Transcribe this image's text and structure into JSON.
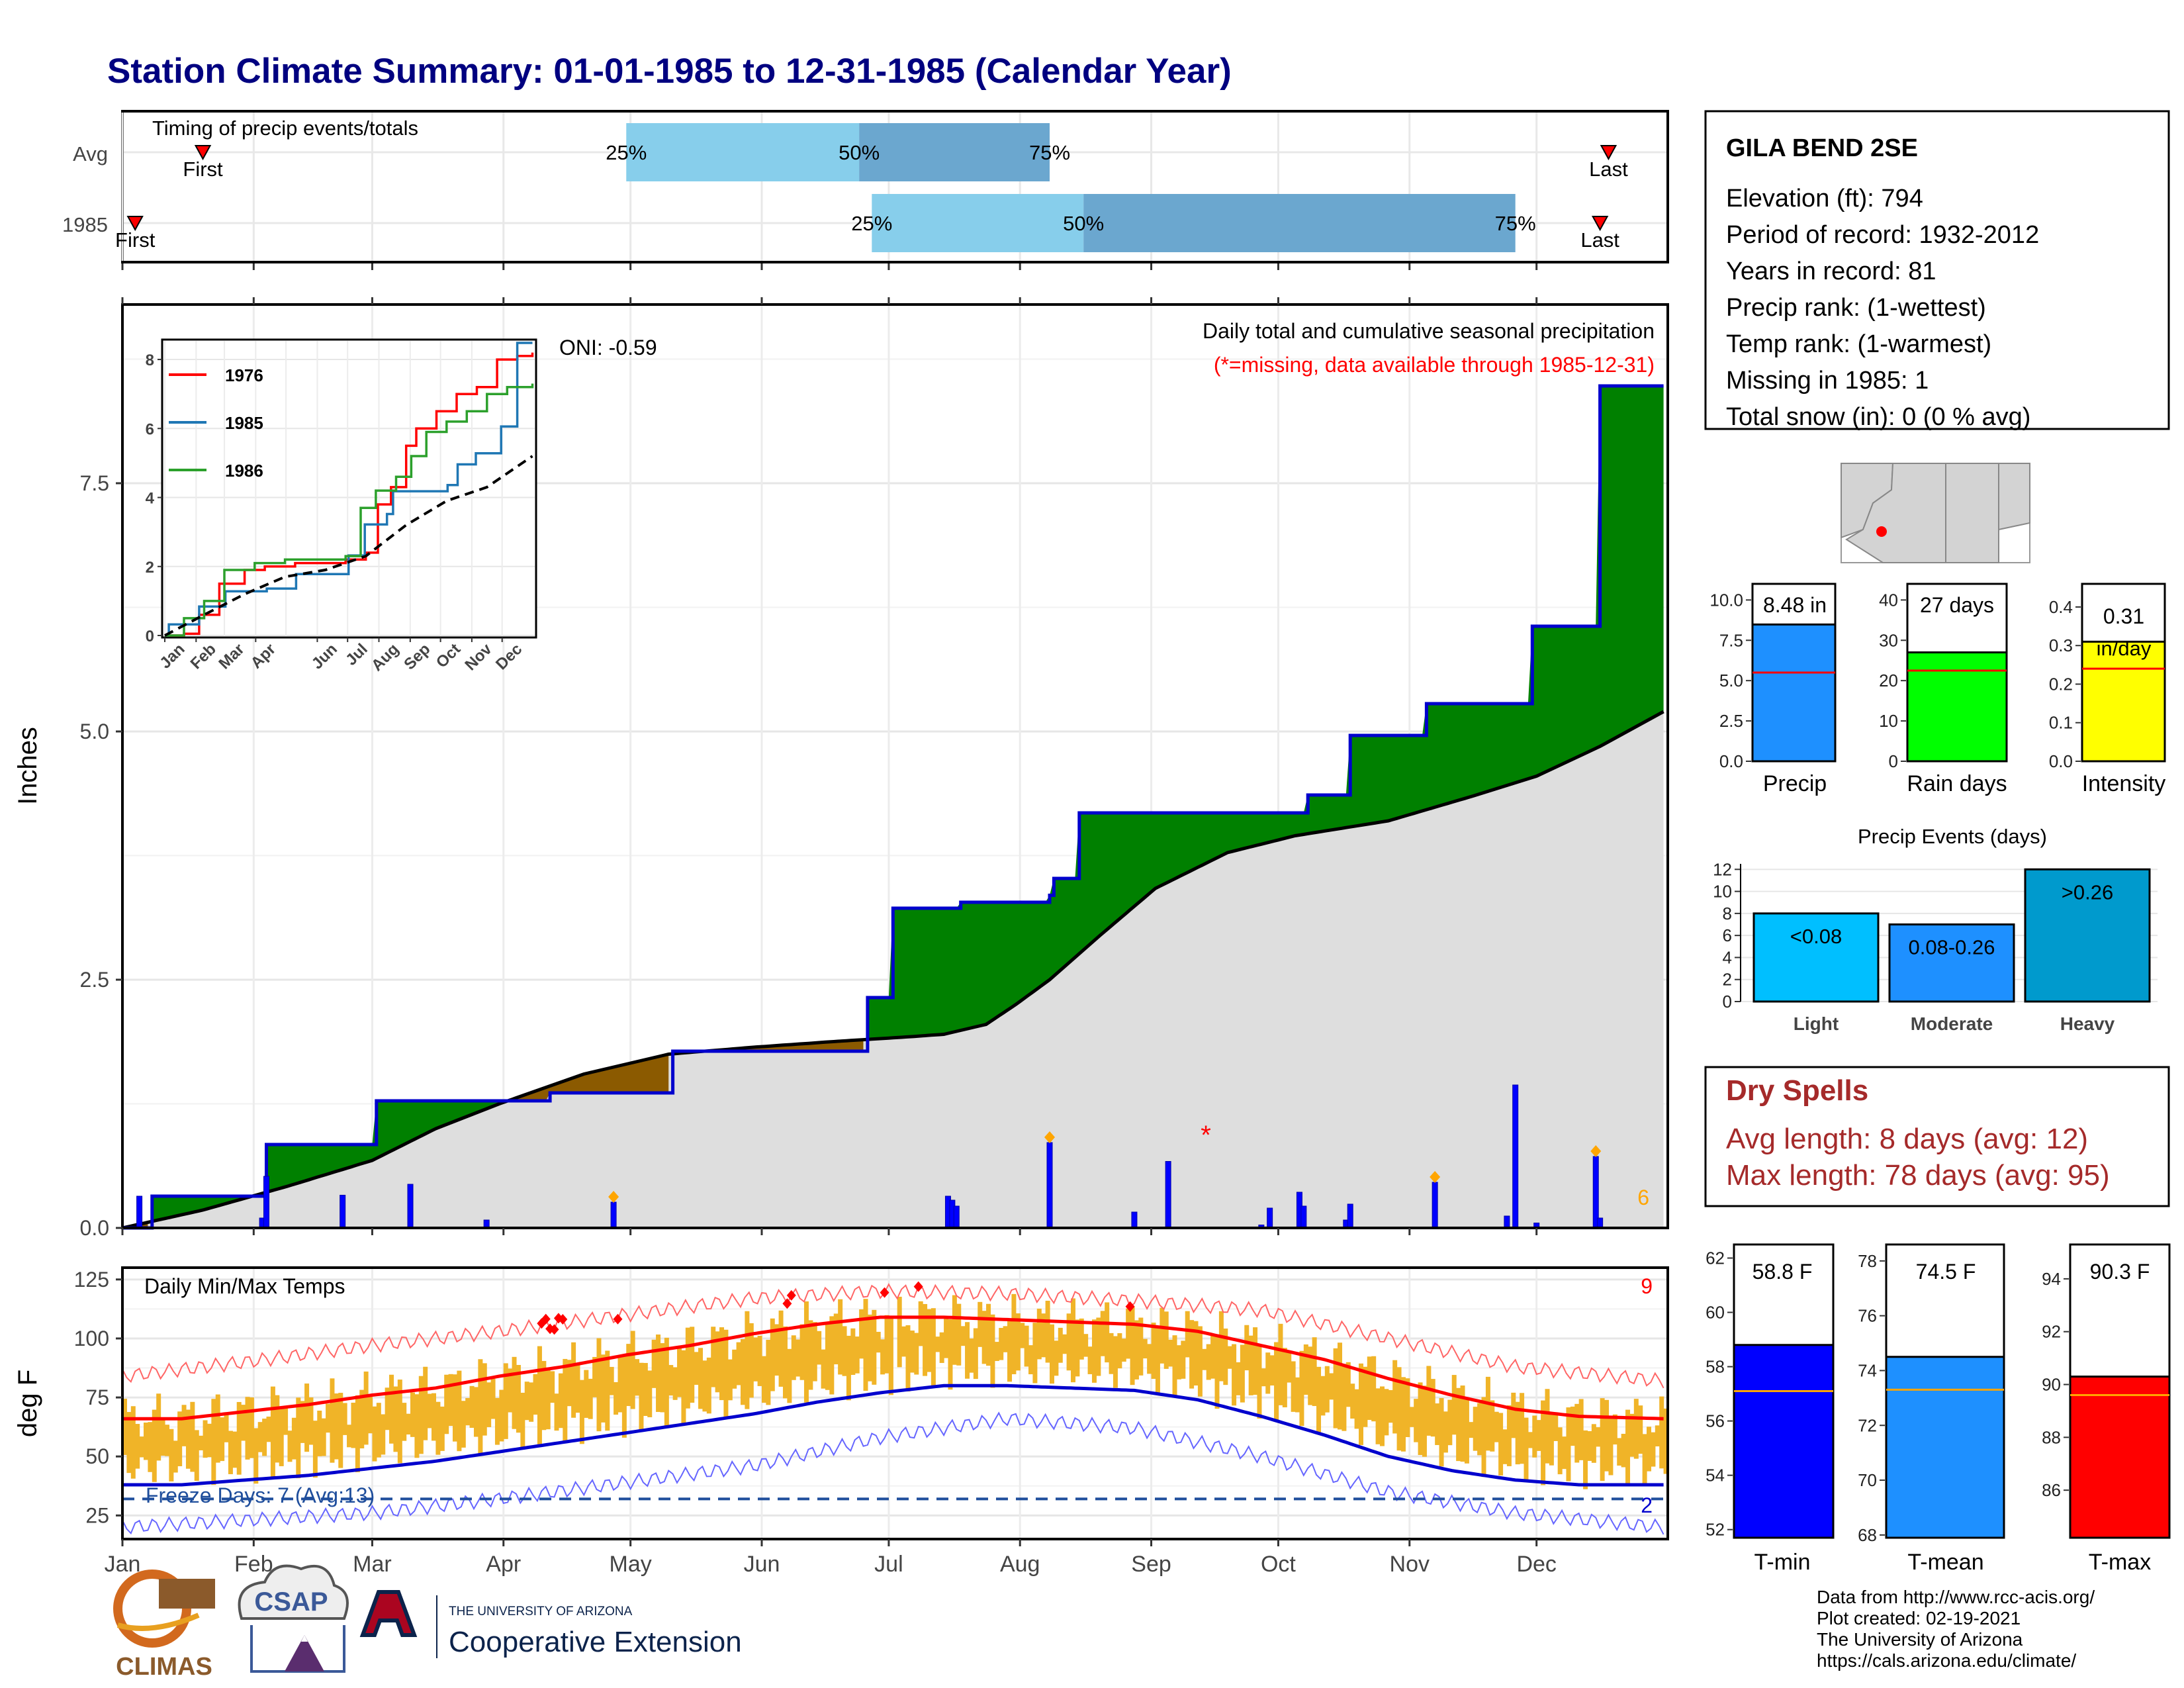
{
  "title": "Station Climate Summary: 01-01-1985 to 12-31-1985 (Calendar Year)",
  "colors": {
    "title": "#000080",
    "quartile_light": "#87ceeb",
    "quartile_dark": "#6ba7cf",
    "above_avg": "#008000",
    "below_avg": "#8b5a00",
    "normal_fill": "#dedede",
    "cum_line": "#0000cd",
    "temp_bar": "#f0b428",
    "tmax_normal": "#ff0000",
    "tmin_normal": "#0000cd",
    "dry_spell": "#a52a2a",
    "missing": "#ff0000"
  },
  "timing": {
    "label": "Timing of precip events/totals",
    "rows": [
      {
        "name": "Avg",
        "first_label": "First",
        "last_label": "Last",
        "q25": "25%",
        "q50": "50%",
        "q75": "75%",
        "first_doy": 20,
        "q25_doy": 120,
        "q50_doy": 175,
        "q75_doy": 220,
        "last_doy": 352
      },
      {
        "name": "1985",
        "first_label": "First",
        "last_label": "Last",
        "q25": "25%",
        "q50": "50%",
        "q75": "75%",
        "first_doy": 4,
        "q25_doy": 178,
        "q50_doy": 228,
        "q75_doy": 330,
        "last_doy": 350
      }
    ]
  },
  "main_panel": {
    "label": "Daily total and cumulative seasonal precipitation",
    "missing_note": "(*=missing, data available through 1985-12-31)",
    "oni": "ONI: -0.59",
    "y_label": "Inches",
    "y_ticks": [
      "0.0",
      "2.5",
      "5.0",
      "7.5"
    ],
    "extreme_count": "6"
  },
  "months": [
    "Jan",
    "Feb",
    "Mar",
    "Apr",
    "May",
    "Jun",
    "Jul",
    "Aug",
    "Sep",
    "Oct",
    "Nov",
    "Dec"
  ],
  "inset": {
    "y_ticks": [
      "0",
      "2",
      "4",
      "6",
      "8"
    ],
    "legend": [
      "1976",
      "1985",
      "1986"
    ]
  },
  "temp_panel": {
    "label": "Daily Min/Max Temps",
    "y_label": "deg F",
    "y_ticks": [
      "25",
      "50",
      "75",
      "100",
      "125"
    ],
    "freeze_label": "Freeze Days: 7 (Avg:13)",
    "record_high_count": "9",
    "record_low_count": "2"
  },
  "station": {
    "name": "GILA BEND 2SE",
    "lines": [
      "Elevation (ft): 794",
      "Period of record: 1932-2012",
      "Years in record: 81",
      "Precip rank:  (1-wettest)",
      "Temp rank:  (1-warmest)",
      "Missing in 1985: 1",
      "Total snow (in): 0 (0 % avg)"
    ]
  },
  "summary_bars": [
    {
      "label": "Precip",
      "value_label": "8.48 in",
      "ticks": [
        "0.0",
        "2.5",
        "5.0",
        "7.5",
        "10.0"
      ],
      "color": "#1e90ff"
    },
    {
      "label": "Rain days",
      "value_label": "27 days",
      "ticks": [
        "0",
        "10",
        "20",
        "30",
        "40"
      ],
      "color": "#00ff00"
    },
    {
      "label": "Intensity",
      "value_label": "0.31",
      "value_unit": "in/day",
      "ticks": [
        "0.0",
        "0.1",
        "0.2",
        "0.3",
        "0.4"
      ],
      "color": "#ffff00"
    }
  ],
  "events": {
    "title": "Precip Events (days)",
    "ticks": [
      "0",
      "2",
      "4",
      "6",
      "8",
      "10",
      "12"
    ],
    "bars": [
      {
        "name": "Light",
        "label": "<0.08",
        "color": "#00bfff"
      },
      {
        "name": "Moderate",
        "label": "0.08-0.26",
        "color": "#1e90ff"
      },
      {
        "name": "Heavy",
        "label": ">0.26",
        "color": "#009acd"
      }
    ]
  },
  "dry_spells": {
    "title": "Dry Spells",
    "avg": "Avg length: 8 days (avg: 12)",
    "max": "Max length: 78 days (avg: 95)"
  },
  "temp_bars": [
    {
      "label": "T-min",
      "value_label": "58.8 F",
      "ticks": [
        "52",
        "54",
        "56",
        "58",
        "60",
        "62"
      ],
      "color": "#0000ff"
    },
    {
      "label": "T-mean",
      "value_label": "74.5 F",
      "ticks": [
        "68",
        "70",
        "72",
        "74",
        "76",
        "78"
      ],
      "color": "#1e90ff"
    },
    {
      "label": "T-max",
      "value_label": "90.3 F",
      "ticks": [
        "86",
        "88",
        "90",
        "92",
        "94"
      ],
      "color": "#ff0000"
    }
  ],
  "credits": [
    "Data from http://www.rcc-acis.org/",
    "Plot created: 02-19-2021",
    "The University of Arizona",
    "https://cals.arizona.edu/climate/"
  ],
  "logos": {
    "climas": "CLIMAS",
    "csap": "CSAP",
    "ua_top": "THE UNIVERSITY OF ARIZONA",
    "ua_bottom": "Cooperative Extension"
  },
  "chart_data": [
    {
      "type": "bar",
      "title": "Timing of precip events/totals",
      "categories": [
        "Avg",
        "1985"
      ],
      "series": [
        {
          "name": "First",
          "values": [
            20,
            4
          ]
        },
        {
          "name": "25%",
          "values": [
            120,
            178
          ]
        },
        {
          "name": "50%",
          "values": [
            175,
            228
          ]
        },
        {
          "name": "75%",
          "values": [
            220,
            330
          ]
        },
        {
          "name": "Last",
          "values": [
            352,
            350
          ]
        }
      ]
    },
    {
      "type": "area",
      "title": "Daily total and cumulative seasonal precipitation",
      "ylabel": "Inches",
      "ylim": [
        0,
        9.3
      ],
      "xlim": [
        1,
        365
      ],
      "series": [
        {
          "name": "1985",
          "x": [
            1,
            5,
            8,
            34,
            35,
            60,
            61,
            100,
            102,
            130,
            131,
            152,
            176,
            177,
            182,
            183,
            198,
            199,
            214,
            220,
            221,
            226,
            227,
            280,
            281,
            290,
            291,
            308,
            309,
            333,
            334,
            349,
            350,
            365
          ],
          "y": [
            0,
            0,
            0.32,
            0.32,
            0.84,
            0.84,
            1.28,
            1.28,
            1.36,
            1.36,
            1.78,
            1.78,
            1.78,
            2.32,
            2.32,
            3.22,
            3.22,
            3.28,
            3.28,
            3.35,
            3.52,
            3.52,
            4.18,
            4.18,
            4.36,
            4.36,
            4.96,
            4.96,
            5.28,
            5.28,
            6.06,
            6.06,
            8.48,
            8.48
          ]
        },
        {
          "name": "Avg",
          "x": [
            1,
            20,
            40,
            60,
            75,
            90,
            110,
            130,
            150,
            170,
            185,
            195,
            205,
            212,
            220,
            232,
            245,
            262,
            278,
            300,
            320,
            335,
            350,
            365
          ],
          "y": [
            0,
            0.18,
            0.42,
            0.68,
            1.0,
            1.25,
            1.55,
            1.75,
            1.82,
            1.88,
            1.92,
            1.95,
            2.05,
            2.25,
            2.5,
            2.95,
            3.42,
            3.78,
            3.95,
            4.1,
            4.35,
            4.55,
            4.85,
            5.2
          ]
        },
        {
          "name": "Daily",
          "x": [
            5,
            34,
            35,
            53,
            69,
            87,
            117,
            196,
            197,
            198,
            220,
            240,
            248,
            270,
            272,
            279,
            280,
            290,
            291,
            311,
            328,
            330,
            335,
            349,
            350
          ],
          "y": [
            0.32,
            0.1,
            0.52,
            0.33,
            0.44,
            0.08,
            0.26,
            0.32,
            0.28,
            0.22,
            0.86,
            0.16,
            0.67,
            0.03,
            0.2,
            0.36,
            0.22,
            0.08,
            0.24,
            0.46,
            0.12,
            1.44,
            0.05,
            0.72,
            0.1
          ]
        }
      ]
    },
    {
      "type": "line",
      "title": "",
      "ylim": [
        0,
        8.5
      ],
      "series": [
        {
          "name": "1976",
          "x": [
            1,
            20,
            35,
            55,
            80,
            100,
            130,
            160,
            180,
            200,
            212,
            225,
            240,
            250,
            270,
            290,
            310,
            330,
            350,
            365
          ],
          "y": [
            0,
            0.05,
            0.6,
            1.5,
            1.9,
            2.0,
            2.1,
            2.1,
            2.2,
            2.4,
            3.8,
            4.3,
            5.5,
            6.0,
            6.5,
            7.0,
            7.2,
            8.0,
            8.1,
            8.2
          ]
        },
        {
          "name": "1985",
          "x": [
            1,
            5,
            35,
            61,
            102,
            131,
            177,
            183,
            199,
            221,
            227,
            281,
            291,
            309,
            334,
            350,
            365
          ],
          "y": [
            0,
            0.32,
            0.84,
            1.28,
            1.36,
            1.78,
            1.78,
            2.32,
            3.22,
            3.52,
            4.18,
            4.36,
            4.96,
            5.28,
            6.06,
            8.48,
            8.48
          ]
        },
        {
          "name": "1986",
          "x": [
            1,
            20,
            40,
            60,
            90,
            120,
            150,
            180,
            195,
            210,
            230,
            245,
            260,
            280,
            300,
            320,
            340,
            365
          ],
          "y": [
            0,
            0.5,
            1.0,
            1.9,
            2.1,
            2.2,
            2.2,
            2.3,
            3.7,
            4.2,
            4.6,
            5.2,
            5.9,
            6.2,
            6.5,
            7.0,
            7.2,
            7.3
          ]
        },
        {
          "name": "Avg",
          "x": [
            1,
            40,
            80,
            120,
            160,
            200,
            240,
            280,
            320,
            365
          ],
          "y": [
            0,
            0.6,
            1.2,
            1.7,
            1.9,
            2.3,
            3.2,
            3.9,
            4.3,
            5.2
          ]
        }
      ]
    },
    {
      "type": "bar",
      "title": "Daily Min/Max Temps",
      "ylabel": "deg F",
      "ylim": [
        15,
        130
      ],
      "series": [
        {
          "name": "Normal Max",
          "x": [
            1,
            15,
            30,
            45,
            60,
            75,
            90,
            105,
            120,
            135,
            150,
            165,
            180,
            195,
            210,
            225,
            240,
            255,
            270,
            285,
            300,
            315,
            330,
            345,
            365
          ],
          "y": [
            66,
            66,
            69,
            72,
            76,
            79,
            84,
            88,
            93,
            97,
            102,
            106,
            109,
            109,
            108,
            107,
            106,
            103,
            97,
            91,
            83,
            76,
            70,
            67,
            66
          ]
        },
        {
          "name": "Normal Min",
          "x": [
            1,
            15,
            30,
            45,
            60,
            75,
            90,
            105,
            120,
            135,
            150,
            165,
            180,
            195,
            210,
            225,
            240,
            255,
            270,
            285,
            300,
            315,
            330,
            345,
            365
          ],
          "y": [
            38,
            38,
            40,
            42,
            45,
            48,
            52,
            56,
            60,
            64,
            68,
            73,
            77,
            80,
            80,
            79,
            78,
            74,
            67,
            59,
            50,
            44,
            40,
            38,
            38
          ]
        },
        {
          "name": "Record High",
          "x": [
            1,
            30,
            60,
            90,
            120,
            150,
            180,
            210,
            240,
            270,
            300,
            330,
            365
          ],
          "y": [
            84,
            90,
            97,
            103,
            110,
            117,
            120,
            119,
            116,
            112,
            100,
            88,
            82
          ]
        },
        {
          "name": "Record Low",
          "x": [
            1,
            30,
            60,
            90,
            120,
            150,
            180,
            210,
            240,
            270,
            300,
            330,
            365
          ],
          "y": [
            20,
            23,
            26,
            32,
            39,
            46,
            58,
            66,
            62,
            50,
            35,
            26,
            20
          ]
        }
      ]
    },
    {
      "type": "bar",
      "title": "",
      "categories": [
        "Precip",
        "Rain days",
        "Intensity"
      ],
      "values": [
        8.48,
        27,
        0.31
      ],
      "normals": [
        5.5,
        22.5,
        0.24
      ],
      "ylims": [
        [
          0,
          11
        ],
        [
          0,
          44
        ],
        [
          0,
          0.46
        ]
      ]
    },
    {
      "type": "bar",
      "title": "Precip Events (days)",
      "categories": [
        "Light",
        "Moderate",
        "Heavy"
      ],
      "values": [
        8,
        7,
        12
      ],
      "ylim": [
        0,
        12.5
      ]
    },
    {
      "type": "bar",
      "title": "",
      "categories": [
        "T-min",
        "T-mean",
        "T-max"
      ],
      "values": [
        58.8,
        74.5,
        90.3
      ],
      "normals": [
        57.1,
        73.3,
        89.6
      ],
      "ylims": [
        [
          51.7,
          62.5
        ],
        [
          67.9,
          78.6
        ],
        [
          84.2,
          95.3
        ]
      ]
    }
  ]
}
